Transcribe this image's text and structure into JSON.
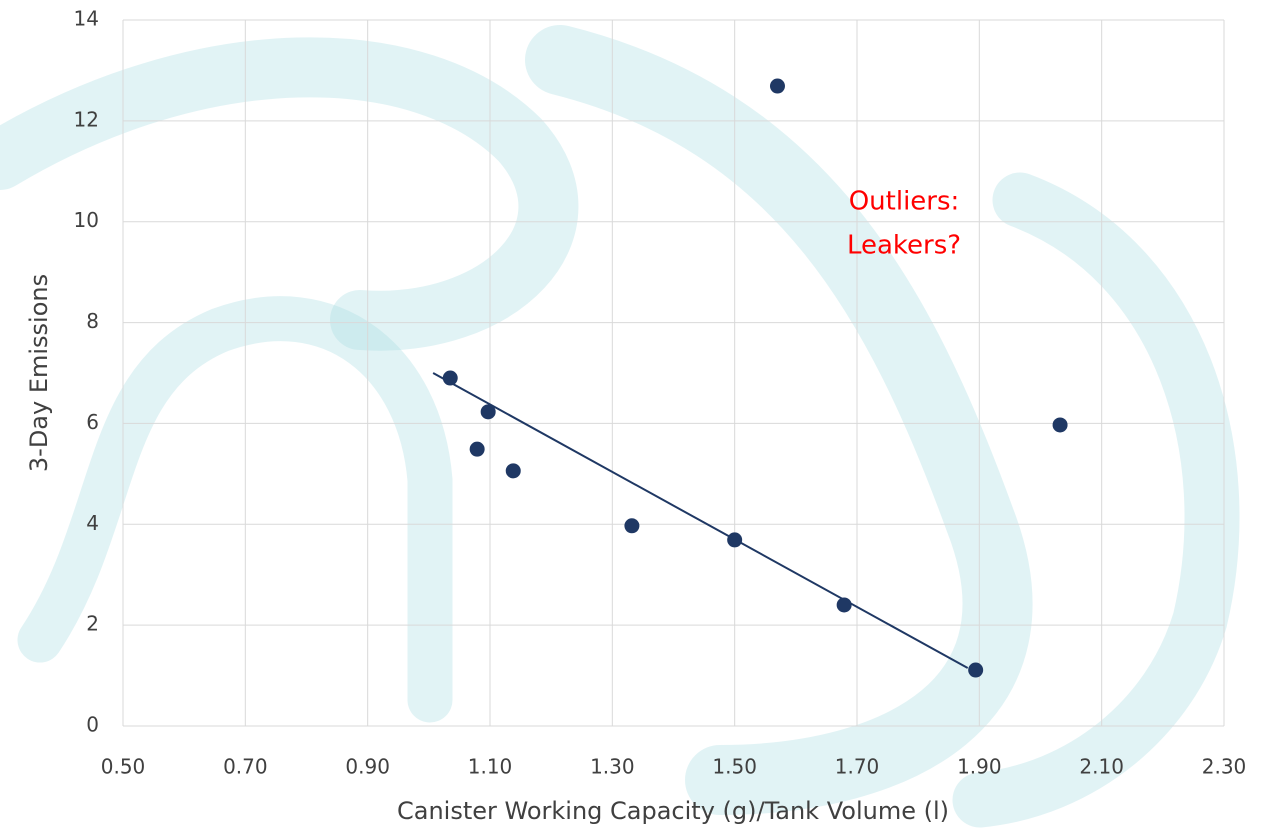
{
  "chart_data": {
    "type": "scatter",
    "x_label": "Canister Working Capacity (g)/Tank Volume (l)",
    "y_label": "3-Day Emissions",
    "annotation": [
      "Outliers:",
      "Leakers?"
    ],
    "annotation_color": "#ff0000",
    "x": [
      1.035,
      1.097,
      1.079,
      1.138,
      1.332,
      1.5,
      1.57,
      1.679,
      1.894,
      2.032
    ],
    "series": [
      {
        "color": "#1f3864",
        "values": [
          6.9,
          6.23,
          5.49,
          5.06,
          3.97,
          3.69,
          12.69,
          2.4,
          1.11,
          5.97
        ]
      }
    ],
    "trendline": {
      "color": "#1f3864",
      "x": [
        1.007,
        1.881
      ],
      "y": [
        7.0,
        1.15
      ]
    },
    "xlim": [
      0.5,
      2.3
    ],
    "xticks": [
      {
        "value": 0.5,
        "label": "0.50"
      },
      {
        "value": 0.7,
        "label": "0.70"
      },
      {
        "value": 0.9,
        "label": "0.90"
      },
      {
        "value": 1.1,
        "label": "1.10"
      },
      {
        "value": 1.3,
        "label": "1.30"
      },
      {
        "value": 1.5,
        "label": "1.50"
      },
      {
        "value": 1.7,
        "label": "1.70"
      },
      {
        "value": 1.9,
        "label": "1.90"
      },
      {
        "value": 2.1,
        "label": "2.10"
      },
      {
        "value": 2.3,
        "label": "2.30"
      }
    ],
    "ylim": [
      0,
      14
    ],
    "yticks": [
      0,
      2,
      4,
      6,
      8,
      10,
      12,
      14
    ],
    "grid": true
  }
}
